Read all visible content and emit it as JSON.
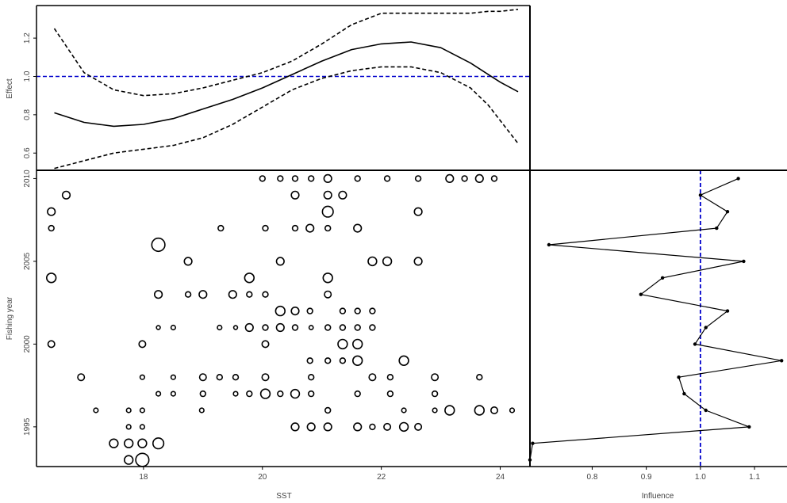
{
  "chart_data": [
    {
      "panel": "effect",
      "type": "line",
      "title": "",
      "xlabel": "",
      "ylabel": "Effect",
      "xlim": [
        16.2,
        24.5
      ],
      "ylim": [
        0.51,
        1.37
      ],
      "yticks": [
        0.6,
        0.8,
        1.0,
        1.2
      ],
      "ytick_labels": [
        "0.6",
        "0.8",
        "1.0",
        "1.2"
      ],
      "reference_y": 1.0,
      "reference_color": "#0000cc",
      "line_color": "#000000",
      "x": [
        16.5,
        17.0,
        17.5,
        18.0,
        18.5,
        19.0,
        19.5,
        20.0,
        20.5,
        21.0,
        21.5,
        22.0,
        22.5,
        23.0,
        23.5,
        23.8,
        24.0,
        24.3
      ],
      "series": [
        {
          "role": "estimate",
          "dash": "solid",
          "values": [
            0.81,
            0.76,
            0.74,
            0.75,
            0.78,
            0.83,
            0.88,
            0.94,
            1.01,
            1.08,
            1.14,
            1.17,
            1.18,
            1.15,
            1.07,
            1.01,
            0.97,
            0.92
          ]
        },
        {
          "role": "upper",
          "dash": "dashed",
          "values": [
            1.25,
            1.02,
            0.93,
            0.9,
            0.91,
            0.94,
            0.98,
            1.02,
            1.08,
            1.17,
            1.27,
            1.33,
            1.33,
            1.33,
            1.33,
            1.34,
            1.34,
            1.35
          ]
        },
        {
          "role": "lower",
          "dash": "dashed",
          "values": [
            0.52,
            0.56,
            0.6,
            0.62,
            0.64,
            0.68,
            0.75,
            0.84,
            0.93,
            0.99,
            1.03,
            1.05,
            1.05,
            1.02,
            0.94,
            0.85,
            0.77,
            0.65
          ]
        }
      ]
    },
    {
      "panel": "coefficient_distribution",
      "type": "scatter",
      "title": "",
      "xlabel": "SST",
      "ylabel": "Fishing year",
      "xlim": [
        16.2,
        24.5
      ],
      "ylim": [
        1992.6,
        2010.5
      ],
      "xticks": [
        18,
        20,
        22,
        24
      ],
      "xtick_labels": [
        "18",
        "20",
        "22",
        "24"
      ],
      "yticks": [
        1995,
        2000,
        2005,
        2010
      ],
      "ytick_labels": [
        "1995",
        "2000",
        "2005",
        "2010"
      ],
      "marker": "open circle, area proportional to relative size",
      "points": [
        {
          "x": 20.0,
          "y": 2010,
          "s": 1
        },
        {
          "x": 20.3,
          "y": 2010,
          "s": 1
        },
        {
          "x": 20.55,
          "y": 2010,
          "s": 1
        },
        {
          "x": 20.82,
          "y": 2010,
          "s": 1
        },
        {
          "x": 21.1,
          "y": 2010,
          "s": 2
        },
        {
          "x": 21.6,
          "y": 2010,
          "s": 1
        },
        {
          "x": 22.1,
          "y": 2010,
          "s": 1
        },
        {
          "x": 22.62,
          "y": 2010,
          "s": 1
        },
        {
          "x": 23.15,
          "y": 2010,
          "s": 2
        },
        {
          "x": 23.4,
          "y": 2010,
          "s": 1
        },
        {
          "x": 23.65,
          "y": 2010,
          "s": 2
        },
        {
          "x": 23.9,
          "y": 2010,
          "s": 1
        },
        {
          "x": 16.7,
          "y": 2009,
          "s": 2
        },
        {
          "x": 20.55,
          "y": 2009,
          "s": 2
        },
        {
          "x": 21.1,
          "y": 2009,
          "s": 2
        },
        {
          "x": 21.35,
          "y": 2009,
          "s": 2
        },
        {
          "x": 16.45,
          "y": 2008,
          "s": 2
        },
        {
          "x": 21.1,
          "y": 2008,
          "s": 4
        },
        {
          "x": 22.62,
          "y": 2008,
          "s": 2
        },
        {
          "x": 16.45,
          "y": 2007,
          "s": 1
        },
        {
          "x": 19.3,
          "y": 2007,
          "s": 1
        },
        {
          "x": 20.05,
          "y": 2007,
          "s": 1
        },
        {
          "x": 20.55,
          "y": 2007,
          "s": 1
        },
        {
          "x": 20.8,
          "y": 2007,
          "s": 2
        },
        {
          "x": 21.1,
          "y": 2007,
          "s": 1
        },
        {
          "x": 21.6,
          "y": 2007,
          "s": 2
        },
        {
          "x": 18.25,
          "y": 2006,
          "s": 6
        },
        {
          "x": 18.75,
          "y": 2005,
          "s": 2
        },
        {
          "x": 20.3,
          "y": 2005,
          "s": 2
        },
        {
          "x": 21.85,
          "y": 2005,
          "s": 2.5
        },
        {
          "x": 22.1,
          "y": 2005,
          "s": 2.5
        },
        {
          "x": 22.62,
          "y": 2005,
          "s": 2
        },
        {
          "x": 16.45,
          "y": 2004,
          "s": 3
        },
        {
          "x": 19.78,
          "y": 2004,
          "s": 3
        },
        {
          "x": 21.1,
          "y": 2004,
          "s": 3
        },
        {
          "x": 18.25,
          "y": 2003,
          "s": 2
        },
        {
          "x": 18.75,
          "y": 2003,
          "s": 1
        },
        {
          "x": 19.0,
          "y": 2003,
          "s": 2
        },
        {
          "x": 19.5,
          "y": 2003,
          "s": 2
        },
        {
          "x": 19.78,
          "y": 2003,
          "s": 1
        },
        {
          "x": 20.05,
          "y": 2003,
          "s": 1
        },
        {
          "x": 21.1,
          "y": 2003,
          "s": 1.5
        },
        {
          "x": 20.3,
          "y": 2002,
          "s": 3
        },
        {
          "x": 20.55,
          "y": 2002,
          "s": 2
        },
        {
          "x": 20.8,
          "y": 2002,
          "s": 1
        },
        {
          "x": 21.35,
          "y": 2002,
          "s": 1
        },
        {
          "x": 21.6,
          "y": 2002,
          "s": 1
        },
        {
          "x": 21.85,
          "y": 2002,
          "s": 1
        },
        {
          "x": 18.25,
          "y": 2001,
          "s": 0.5
        },
        {
          "x": 18.5,
          "y": 2001,
          "s": 0.7
        },
        {
          "x": 19.28,
          "y": 2001,
          "s": 0.7
        },
        {
          "x": 19.55,
          "y": 2001,
          "s": 0.5
        },
        {
          "x": 19.78,
          "y": 2001,
          "s": 2
        },
        {
          "x": 20.05,
          "y": 2001,
          "s": 1
        },
        {
          "x": 20.3,
          "y": 2001,
          "s": 2
        },
        {
          "x": 20.55,
          "y": 2001,
          "s": 1
        },
        {
          "x": 20.82,
          "y": 2001,
          "s": 0.6
        },
        {
          "x": 21.1,
          "y": 2001,
          "s": 1
        },
        {
          "x": 21.35,
          "y": 2001,
          "s": 1
        },
        {
          "x": 21.6,
          "y": 2001,
          "s": 1
        },
        {
          "x": 21.85,
          "y": 2001,
          "s": 1
        },
        {
          "x": 16.45,
          "y": 2000,
          "s": 1.5
        },
        {
          "x": 17.98,
          "y": 2000,
          "s": 1.5
        },
        {
          "x": 20.05,
          "y": 2000,
          "s": 1.5
        },
        {
          "x": 21.35,
          "y": 2000,
          "s": 3
        },
        {
          "x": 21.6,
          "y": 2000,
          "s": 3
        },
        {
          "x": 20.8,
          "y": 1999,
          "s": 1
        },
        {
          "x": 21.1,
          "y": 1999,
          "s": 1
        },
        {
          "x": 21.35,
          "y": 1999,
          "s": 1
        },
        {
          "x": 21.6,
          "y": 1999,
          "s": 3
        },
        {
          "x": 22.38,
          "y": 1999,
          "s": 3
        },
        {
          "x": 16.95,
          "y": 1998,
          "s": 1.5
        },
        {
          "x": 17.98,
          "y": 1998,
          "s": 0.7
        },
        {
          "x": 18.5,
          "y": 1998,
          "s": 0.7
        },
        {
          "x": 19.0,
          "y": 1998,
          "s": 1.5
        },
        {
          "x": 19.28,
          "y": 1998,
          "s": 1
        },
        {
          "x": 19.55,
          "y": 1998,
          "s": 1
        },
        {
          "x": 20.05,
          "y": 1998,
          "s": 1.5
        },
        {
          "x": 20.82,
          "y": 1998,
          "s": 1
        },
        {
          "x": 21.85,
          "y": 1998,
          "s": 1.5
        },
        {
          "x": 22.15,
          "y": 1998,
          "s": 1
        },
        {
          "x": 22.9,
          "y": 1998,
          "s": 1.5
        },
        {
          "x": 23.65,
          "y": 1998,
          "s": 1
        },
        {
          "x": 18.25,
          "y": 1997,
          "s": 0.7
        },
        {
          "x": 18.5,
          "y": 1997,
          "s": 0.7
        },
        {
          "x": 19.0,
          "y": 1997,
          "s": 1
        },
        {
          "x": 19.55,
          "y": 1997,
          "s": 0.7
        },
        {
          "x": 19.78,
          "y": 1997,
          "s": 1
        },
        {
          "x": 20.05,
          "y": 1997,
          "s": 3
        },
        {
          "x": 20.3,
          "y": 1997,
          "s": 1
        },
        {
          "x": 20.55,
          "y": 1997,
          "s": 2.5
        },
        {
          "x": 20.82,
          "y": 1997,
          "s": 1
        },
        {
          "x": 21.6,
          "y": 1997,
          "s": 1
        },
        {
          "x": 22.15,
          "y": 1997,
          "s": 1
        },
        {
          "x": 22.9,
          "y": 1997,
          "s": 1
        },
        {
          "x": 17.2,
          "y": 1996,
          "s": 0.7
        },
        {
          "x": 17.75,
          "y": 1996,
          "s": 0.7
        },
        {
          "x": 17.98,
          "y": 1996,
          "s": 0.7
        },
        {
          "x": 18.98,
          "y": 1996,
          "s": 0.7
        },
        {
          "x": 21.1,
          "y": 1996,
          "s": 1
        },
        {
          "x": 22.38,
          "y": 1996,
          "s": 0.7
        },
        {
          "x": 22.9,
          "y": 1996,
          "s": 0.7
        },
        {
          "x": 23.15,
          "y": 1996,
          "s": 3
        },
        {
          "x": 23.65,
          "y": 1996,
          "s": 3
        },
        {
          "x": 23.9,
          "y": 1996,
          "s": 1.5
        },
        {
          "x": 24.2,
          "y": 1996,
          "s": 0.7
        },
        {
          "x": 17.75,
          "y": 1995,
          "s": 0.7
        },
        {
          "x": 17.98,
          "y": 1995,
          "s": 0.7
        },
        {
          "x": 20.55,
          "y": 1995,
          "s": 2
        },
        {
          "x": 20.82,
          "y": 1995,
          "s": 2
        },
        {
          "x": 21.1,
          "y": 1995,
          "s": 2
        },
        {
          "x": 21.6,
          "y": 1995,
          "s": 2
        },
        {
          "x": 21.85,
          "y": 1995,
          "s": 1
        },
        {
          "x": 22.1,
          "y": 1995,
          "s": 1.5
        },
        {
          "x": 22.38,
          "y": 1995,
          "s": 2.5
        },
        {
          "x": 22.62,
          "y": 1995,
          "s": 1.5
        },
        {
          "x": 17.5,
          "y": 1994,
          "s": 2.5
        },
        {
          "x": 17.75,
          "y": 1994,
          "s": 2.5
        },
        {
          "x": 17.98,
          "y": 1994,
          "s": 2.5
        },
        {
          "x": 18.25,
          "y": 1994,
          "s": 4
        },
        {
          "x": 17.75,
          "y": 1993,
          "s": 2.5
        },
        {
          "x": 17.98,
          "y": 1993,
          "s": 6
        }
      ]
    },
    {
      "panel": "influence",
      "type": "line",
      "title": "",
      "xlabel": "Influence",
      "ylabel": "",
      "xlim": [
        0.685,
        1.16
      ],
      "ylim": [
        1992.6,
        2010.5
      ],
      "xticks": [
        0.8,
        0.9,
        1.0,
        1.1
      ],
      "xtick_labels": [
        "0.8",
        "0.9",
        "1.0",
        "1.1"
      ],
      "reference_x": 1.0,
      "reference_color": "#0000cc",
      "line_color": "#000000",
      "years": [
        2010,
        2009,
        2008,
        2007,
        2006,
        2005,
        2004,
        2003,
        2002,
        2001,
        2000,
        1999,
        1998,
        1997,
        1996,
        1995,
        1994,
        1993
      ],
      "values": [
        1.07,
        1.0,
        1.05,
        1.03,
        0.72,
        1.08,
        0.93,
        0.89,
        1.05,
        1.01,
        0.99,
        1.15,
        0.96,
        0.97,
        1.01,
        1.09,
        0.69,
        0.685
      ]
    }
  ]
}
